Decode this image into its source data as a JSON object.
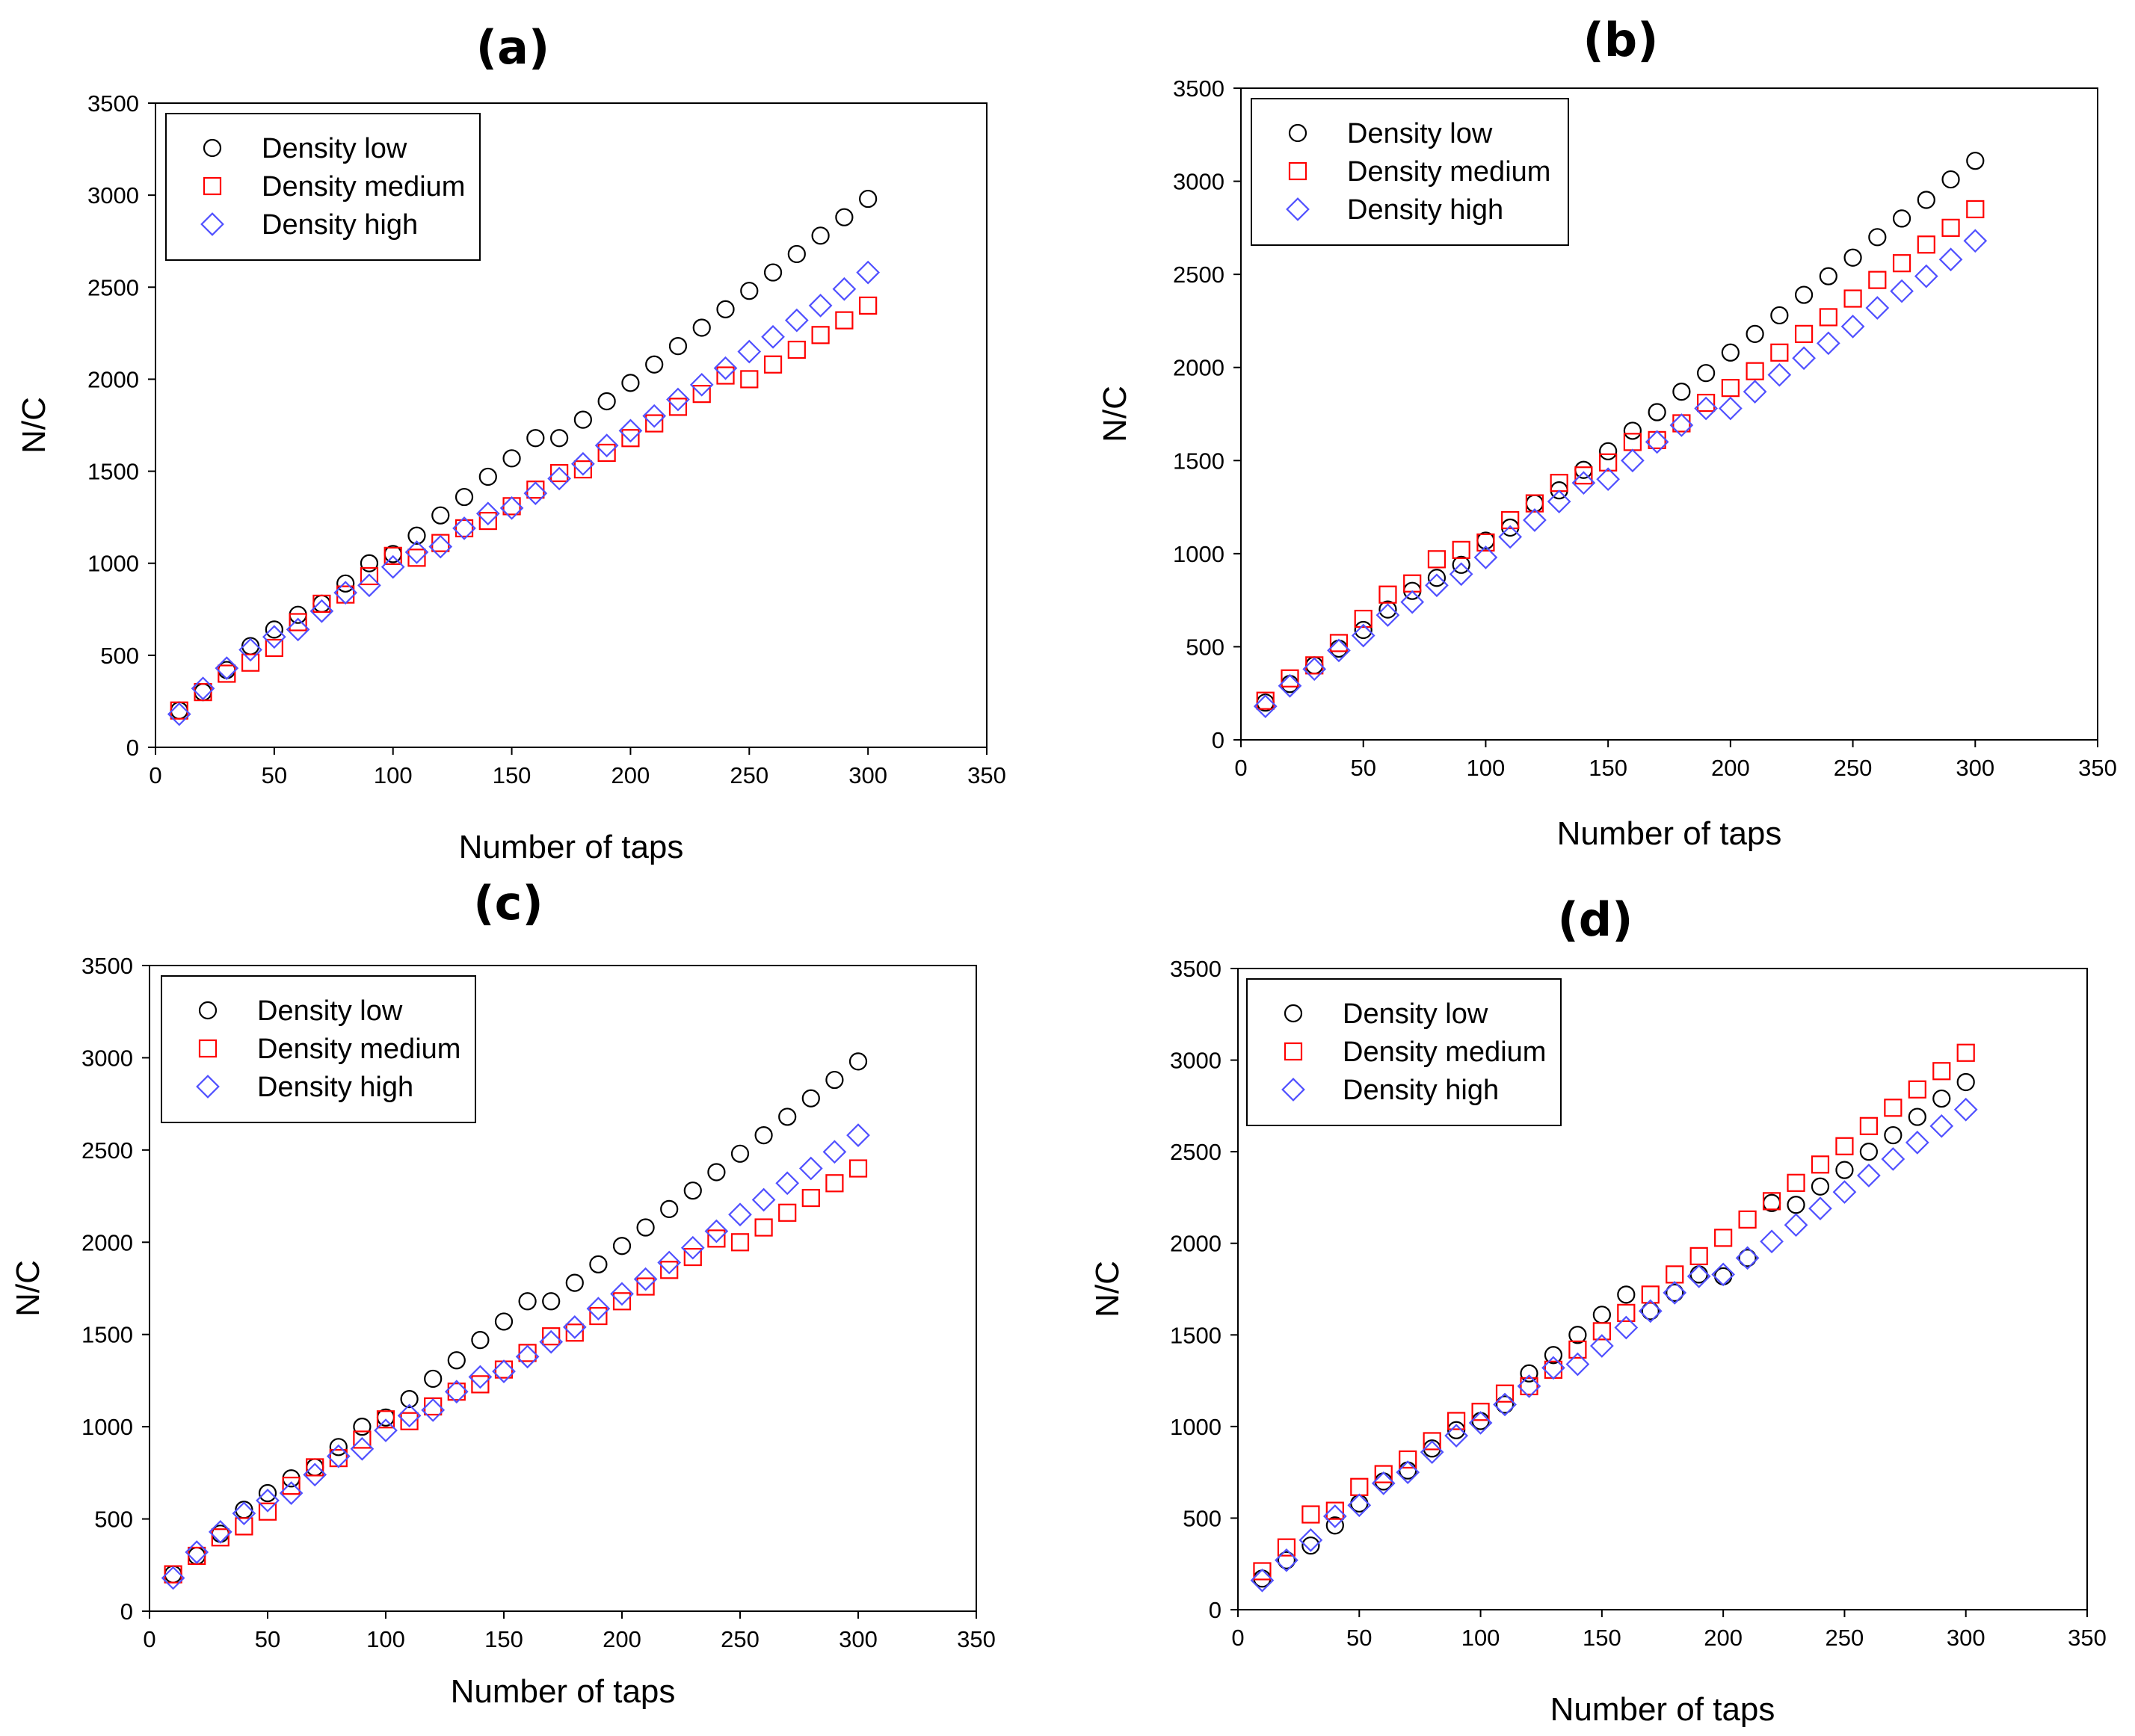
{
  "chart_data": [
    {
      "panel": "(a)",
      "type": "scatter",
      "title": "(a)",
      "xlabel": "Number of taps",
      "ylabel": "N/C",
      "xlim": [
        0,
        350
      ],
      "ylim": [
        0,
        3500
      ],
      "xticks": [
        "0",
        "50",
        "100",
        "150",
        "200",
        "250",
        "300",
        "350"
      ],
      "yticks": [
        "0",
        "500",
        "1000",
        "1500",
        "2000",
        "2500",
        "3000",
        "3500"
      ],
      "grid": false,
      "legend_position": "top-left",
      "x": [
        10,
        20,
        30,
        40,
        50,
        60,
        70,
        80,
        90,
        100,
        110,
        120,
        130,
        140,
        150,
        160,
        170,
        180,
        190,
        200,
        210,
        220,
        230,
        240,
        250,
        260,
        270,
        280,
        290,
        300
      ],
      "series": [
        {
          "name": "Density low",
          "marker": "circle",
          "color": "#000000",
          "values": [
            200,
            300,
            420,
            550,
            640,
            720,
            780,
            890,
            1000,
            1050,
            1150,
            1260,
            1360,
            1470,
            1570,
            1680,
            1680,
            1780,
            1880,
            1980,
            2080,
            2180,
            2280,
            2380,
            2480,
            2580,
            2680,
            2780,
            2880,
            2980
          ]
        },
        {
          "name": "Density medium",
          "marker": "square",
          "color": "#ff0000",
          "values": [
            200,
            300,
            400,
            460,
            540,
            680,
            780,
            830,
            930,
            1040,
            1030,
            1110,
            1190,
            1230,
            1310,
            1400,
            1490,
            1510,
            1600,
            1680,
            1760,
            1850,
            1920,
            2020,
            2000,
            2080,
            2160,
            2240,
            2320,
            2400
          ]
        },
        {
          "name": "Density high",
          "marker": "diamond",
          "color": "#5050ff",
          "values": [
            180,
            320,
            430,
            530,
            600,
            640,
            740,
            840,
            880,
            980,
            1060,
            1090,
            1190,
            1270,
            1300,
            1380,
            1460,
            1540,
            1640,
            1720,
            1800,
            1890,
            1970,
            2060,
            2150,
            2230,
            2320,
            2400,
            2490,
            2580
          ]
        }
      ]
    },
    {
      "panel": "(b)",
      "type": "scatter",
      "title": "(b)",
      "xlabel": "Number of taps",
      "ylabel": "N/C",
      "xlim": [
        0,
        350
      ],
      "ylim": [
        0,
        3500
      ],
      "xticks": [
        "0",
        "50",
        "100",
        "150",
        "200",
        "250",
        "300",
        "350"
      ],
      "yticks": [
        "0",
        "500",
        "1000",
        "1500",
        "2000",
        "2500",
        "3000",
        "3500"
      ],
      "grid": false,
      "legend_position": "top-left",
      "x": [
        10,
        20,
        30,
        40,
        50,
        60,
        70,
        80,
        90,
        100,
        110,
        120,
        130,
        140,
        150,
        160,
        170,
        180,
        190,
        200,
        210,
        220,
        230,
        240,
        250,
        260,
        270,
        280,
        290,
        300
      ],
      "series": [
        {
          "name": "Density low",
          "marker": "circle",
          "color": "#000000",
          "values": [
            200,
            300,
            400,
            490,
            590,
            700,
            800,
            870,
            940,
            1070,
            1140,
            1270,
            1340,
            1450,
            1550,
            1660,
            1760,
            1870,
            1970,
            2080,
            2180,
            2280,
            2390,
            2490,
            2590,
            2700,
            2800,
            2900,
            3010,
            3110
          ]
        },
        {
          "name": "Density medium",
          "marker": "square",
          "color": "#ff0000",
          "values": [
            210,
            330,
            400,
            520,
            650,
            780,
            840,
            970,
            1020,
            1060,
            1180,
            1270,
            1380,
            1420,
            1490,
            1600,
            1610,
            1700,
            1810,
            1890,
            1980,
            2080,
            2180,
            2270,
            2370,
            2470,
            2560,
            2660,
            2750,
            2850
          ]
        },
        {
          "name": "Density high",
          "marker": "diamond",
          "color": "#5050ff",
          "values": [
            180,
            290,
            380,
            480,
            560,
            670,
            740,
            830,
            890,
            980,
            1090,
            1180,
            1280,
            1380,
            1400,
            1500,
            1600,
            1690,
            1780,
            1780,
            1870,
            1960,
            2050,
            2130,
            2220,
            2320,
            2410,
            2490,
            2580,
            2680
          ]
        }
      ]
    },
    {
      "panel": "(c)",
      "type": "scatter",
      "title": "(c)",
      "xlabel": "Number of taps",
      "ylabel": "N/C",
      "xlim": [
        0,
        350
      ],
      "ylim": [
        0,
        3500
      ],
      "xticks": [
        "0",
        "50",
        "100",
        "150",
        "200",
        "250",
        "300",
        "350"
      ],
      "yticks": [
        "0",
        "500",
        "1000",
        "1500",
        "2000",
        "2500",
        "3000",
        "3500"
      ],
      "grid": false,
      "legend_position": "top-left",
      "x": [
        10,
        20,
        30,
        40,
        50,
        60,
        70,
        80,
        90,
        100,
        110,
        120,
        130,
        140,
        150,
        160,
        170,
        180,
        190,
        200,
        210,
        220,
        230,
        240,
        250,
        260,
        270,
        280,
        290,
        300
      ],
      "series": [
        {
          "name": "Density low",
          "marker": "circle",
          "color": "#000000",
          "values": [
            200,
            300,
            420,
            550,
            640,
            720,
            780,
            890,
            1000,
            1050,
            1150,
            1260,
            1360,
            1470,
            1570,
            1680,
            1680,
            1780,
            1880,
            1980,
            2080,
            2180,
            2280,
            2380,
            2480,
            2580,
            2680,
            2780,
            2880,
            2980
          ]
        },
        {
          "name": "Density medium",
          "marker": "square",
          "color": "#ff0000",
          "values": [
            200,
            300,
            400,
            460,
            540,
            680,
            780,
            830,
            930,
            1040,
            1030,
            1110,
            1190,
            1230,
            1310,
            1400,
            1490,
            1510,
            1600,
            1680,
            1760,
            1850,
            1920,
            2020,
            2000,
            2080,
            2160,
            2240,
            2320,
            2400
          ]
        },
        {
          "name": "Density high",
          "marker": "diamond",
          "color": "#5050ff",
          "values": [
            180,
            320,
            430,
            530,
            600,
            640,
            740,
            840,
            880,
            980,
            1060,
            1090,
            1190,
            1270,
            1300,
            1380,
            1460,
            1540,
            1640,
            1720,
            1800,
            1890,
            1970,
            2060,
            2150,
            2230,
            2320,
            2400,
            2490,
            2580
          ]
        }
      ]
    },
    {
      "panel": "(d)",
      "type": "scatter",
      "title": "(d)",
      "xlabel": "Number of taps",
      "ylabel": "N/C",
      "xlim": [
        0,
        350
      ],
      "ylim": [
        0,
        3500
      ],
      "xticks": [
        "0",
        "50",
        "100",
        "150",
        "200",
        "250",
        "300",
        "350"
      ],
      "yticks": [
        "0",
        "500",
        "1000",
        "1500",
        "2000",
        "2500",
        "3000",
        "3500"
      ],
      "grid": false,
      "legend_position": "top-left",
      "x": [
        10,
        20,
        30,
        40,
        50,
        60,
        70,
        80,
        90,
        100,
        110,
        120,
        130,
        140,
        150,
        160,
        170,
        180,
        190,
        200,
        210,
        220,
        230,
        240,
        250,
        260,
        270,
        280,
        290,
        300
      ],
      "series": [
        {
          "name": "Density low",
          "marker": "circle",
          "color": "#000000",
          "values": [
            170,
            270,
            350,
            460,
            580,
            700,
            760,
            880,
            980,
            1030,
            1120,
            1290,
            1390,
            1500,
            1610,
            1720,
            1630,
            1730,
            1830,
            1820,
            1920,
            2220,
            2210,
            2310,
            2400,
            2500,
            2590,
            2690,
            2790,
            2880
          ]
        },
        {
          "name": "Density medium",
          "marker": "square",
          "color": "#ff0000",
          "values": [
            210,
            340,
            520,
            540,
            670,
            740,
            820,
            920,
            1030,
            1080,
            1180,
            1220,
            1310,
            1420,
            1520,
            1620,
            1720,
            1830,
            1930,
            2030,
            2130,
            2230,
            2330,
            2430,
            2530,
            2640,
            2740,
            2840,
            2940,
            3040
          ]
        },
        {
          "name": "Density high",
          "marker": "diamond",
          "color": "#5050ff",
          "values": [
            160,
            270,
            380,
            510,
            570,
            690,
            750,
            860,
            950,
            1020,
            1120,
            1220,
            1320,
            1340,
            1440,
            1540,
            1630,
            1730,
            1820,
            1830,
            1920,
            2010,
            2100,
            2190,
            2280,
            2370,
            2460,
            2550,
            2640,
            2730
          ]
        }
      ]
    }
  ]
}
